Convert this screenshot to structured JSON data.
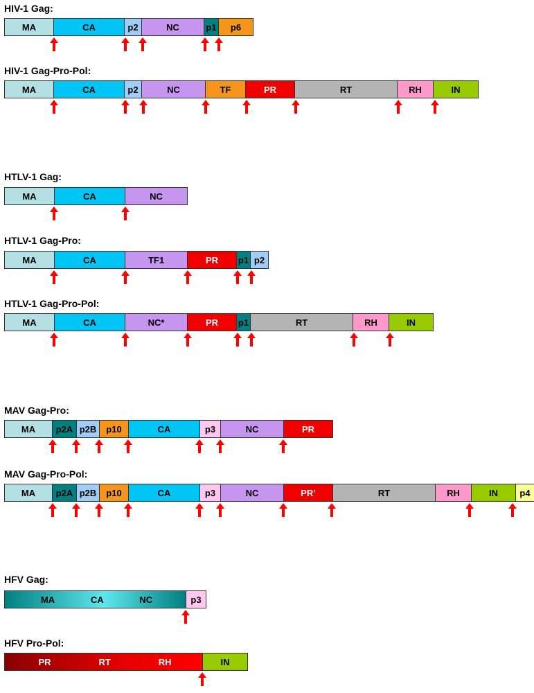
{
  "colors": {
    "MA": "#b4e0e4",
    "CA": "#00c5f5",
    "p2": "#9fcdf5",
    "NC": "#c595f0",
    "p1": "#008080",
    "p6": "#f5951b",
    "TF": "#f5951b",
    "PR": "#f20000",
    "RT": "#b4b4b4",
    "RH": "#ff99cc",
    "IN": "#99cc00",
    "p3": "#ffc8f0",
    "p4": "#ffff99",
    "arrow": "#ff0000"
  },
  "constructs": [
    {
      "title": "HIV-1 Gag:",
      "segments": [
        {
          "label": "MA",
          "color": "MA"
        },
        {
          "label": "CA",
          "color": "CA"
        },
        {
          "label": "p2",
          "color": "p2"
        },
        {
          "label": "NC",
          "color": "NC"
        },
        {
          "label": "p1",
          "color": "p1"
        },
        {
          "label": "p6",
          "color": "p6"
        }
      ]
    },
    {
      "title": "HIV-1 Gag-Pro-Pol:",
      "segments": [
        {
          "label": "MA",
          "color": "MA"
        },
        {
          "label": "CA",
          "color": "CA"
        },
        {
          "label": "p2",
          "color": "p2"
        },
        {
          "label": "NC",
          "color": "NC"
        },
        {
          "label": "TF",
          "color": "TF"
        },
        {
          "label": "PR",
          "color": "PR",
          "white": true
        },
        {
          "label": "RT",
          "color": "RT"
        },
        {
          "label": "RH",
          "color": "RH"
        },
        {
          "label": "IN",
          "color": "IN"
        }
      ]
    },
    {
      "title": "HTLV-1 Gag:",
      "segments": [
        {
          "label": "MA",
          "color": "MA"
        },
        {
          "label": "CA",
          "color": "CA"
        },
        {
          "label": "NC",
          "color": "NC"
        }
      ]
    },
    {
      "title": "HTLV-1 Gag-Pro:",
      "segments": [
        {
          "label": "MA",
          "color": "MA"
        },
        {
          "label": "CA",
          "color": "CA"
        },
        {
          "label": "TF1",
          "color": "NC"
        },
        {
          "label": "PR",
          "color": "PR",
          "white": true
        },
        {
          "label": "p1",
          "color": "p1"
        },
        {
          "label": "p2",
          "color": "p2"
        }
      ]
    },
    {
      "title": "HTLV-1 Gag-Pro-Pol:",
      "segments": [
        {
          "label": "MA",
          "color": "MA"
        },
        {
          "label": "CA",
          "color": "CA"
        },
        {
          "label": "NC*",
          "color": "NC"
        },
        {
          "label": "PR",
          "color": "PR",
          "white": true
        },
        {
          "label": "p1",
          "color": "p1"
        },
        {
          "label": "RT",
          "color": "RT"
        },
        {
          "label": "RH",
          "color": "RH"
        },
        {
          "label": "IN",
          "color": "IN"
        }
      ]
    },
    {
      "title": "MAV Gag-Pro:",
      "segments": [
        {
          "label": "MA",
          "color": "MA"
        },
        {
          "label": "p2A",
          "color": "p1"
        },
        {
          "label": "p2B",
          "color": "p2"
        },
        {
          "label": "p10",
          "color": "p6"
        },
        {
          "label": "CA",
          "color": "CA"
        },
        {
          "label": "p3",
          "color": "p3"
        },
        {
          "label": "NC",
          "color": "NC"
        },
        {
          "label": "PR",
          "color": "PR",
          "white": true
        }
      ]
    },
    {
      "title": "MAV Gag-Pro-Pol:",
      "segments": [
        {
          "label": "MA",
          "color": "MA"
        },
        {
          "label": "p2A",
          "color": "p1"
        },
        {
          "label": "p2B",
          "color": "p2"
        },
        {
          "label": "p10",
          "color": "p6"
        },
        {
          "label": "CA",
          "color": "CA"
        },
        {
          "label": "p3",
          "color": "p3"
        },
        {
          "label": "NC",
          "color": "NC"
        },
        {
          "label": "PR’",
          "color": "PR",
          "white": true
        },
        {
          "label": "RT",
          "color": "RT"
        },
        {
          "label": "RH",
          "color": "RH"
        },
        {
          "label": "IN",
          "color": "IN"
        },
        {
          "label": "p4",
          "color": "p4"
        }
      ]
    },
    {
      "title": "HFV Gag:",
      "segments": [
        {
          "label": "MA CA NC",
          "labels": [
            "MA",
            "CA",
            "NC"
          ],
          "gradient": "linear-gradient(to right, #008080, #5ee6ee 55%, #008080)"
        },
        {
          "label": "p3",
          "color": "p3"
        }
      ]
    },
    {
      "title": "HFV Pro-Pol:",
      "segments": [
        {
          "label": "PR RT RH",
          "labels": [
            "PR",
            "RT",
            "RH"
          ],
          "gradient": "linear-gradient(to right, #8b0000, #e60000 60%, #ff0000)",
          "white": true
        },
        {
          "label": "IN",
          "color": "IN"
        }
      ]
    }
  ]
}
